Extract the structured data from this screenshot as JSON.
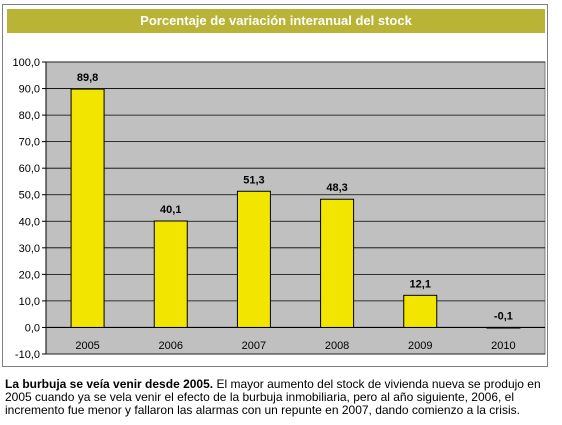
{
  "chart_data": {
    "type": "bar",
    "title": "Porcentaje de variación interanual del stock",
    "categories": [
      "2005",
      "2006",
      "2007",
      "2008",
      "2009",
      "2010"
    ],
    "values": [
      89.8,
      40.1,
      51.3,
      48.3,
      12.1,
      -0.1
    ],
    "data_labels": [
      "89,8",
      "40,1",
      "51,3",
      "48,3",
      "12,1",
      "-0,1"
    ],
    "y_ticks": [
      "100,0",
      "90,0",
      "80,0",
      "70,0",
      "60,0",
      "50,0",
      "40,0",
      "30,0",
      "20,0",
      "10,0",
      "0,0",
      "-10,0"
    ],
    "ylim": [
      -10,
      100
    ],
    "xlabel": "",
    "ylabel": "",
    "grid": true,
    "colors": {
      "bar": "#f2e600",
      "bar_stroke": "#000000",
      "plot_bg": "#c0c0c0",
      "title_bg": "#b9b336"
    }
  },
  "caption": {
    "lead": "La burbuja se veía venir desde 2005.",
    "body": " El mayor aumento del stock de vivienda nueva se produjo en 2005 cuando ya se vela venir el efecto de la burbuja inmobiliaria, pero al año siguiente, 2006, el incremento fue menor y fallaron las alarmas con un repunte en 2007, dando comienzo a la crisis."
  }
}
